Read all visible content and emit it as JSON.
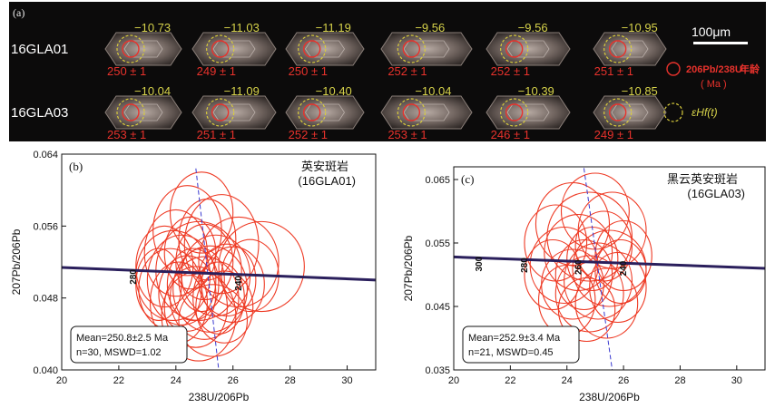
{
  "panel_a": {
    "label": "(a)",
    "scale_bar": "100μm",
    "legend": {
      "age_label_iso": "206Pb/238U",
      "age_label_cn": "年龄",
      "age_unit": "( Ma )",
      "hf_label": "εHf(t)"
    },
    "rows": [
      {
        "sample": "16GLA01",
        "grains": [
          {
            "hf": "−10.73",
            "age": "250 ± 1"
          },
          {
            "hf": "−11.03",
            "age": "249 ± 1"
          },
          {
            "hf": "−11.19",
            "age": "250 ± 1"
          },
          {
            "hf": "−9.56",
            "age": "252 ± 1"
          },
          {
            "hf": "−9.56",
            "age": "252 ± 1"
          },
          {
            "hf": "−10.95",
            "age": "251 ± 1"
          }
        ]
      },
      {
        "sample": "16GLA03",
        "grains": [
          {
            "hf": "−10.04",
            "age": "253 ± 1"
          },
          {
            "hf": "−11.09",
            "age": "251 ± 1"
          },
          {
            "hf": "−10.40",
            "age": "252 ± 1"
          },
          {
            "hf": "−10.04",
            "age": "253 ± 1"
          },
          {
            "hf": "−10.39",
            "age": "246 ± 1"
          },
          {
            "hf": "−10.85",
            "age": "249 ± 1"
          }
        ]
      }
    ],
    "colors": {
      "age_text": "#e8322c",
      "hf_text": "#d6d24a",
      "circle_red": "#e8322c",
      "circle_yellow": "#d8cc3c"
    }
  },
  "chart_data": [
    {
      "type": "scatter",
      "panel": "(b)",
      "rock": "英安斑岩",
      "sample": "(16GLA01)",
      "xlabel": "238U/206Pb",
      "ylabel": "207Pb/206Pb",
      "xlim": [
        20,
        31
      ],
      "ylim": [
        0.04,
        0.064
      ],
      "xticks": [
        20,
        22,
        24,
        26,
        28,
        30
      ],
      "yticks": [
        0.04,
        0.048,
        0.056,
        0.064
      ],
      "ytick_labels": [
        "0.040",
        "0.048",
        "0.056",
        "0.064"
      ],
      "concordia": [
        {
          "x": 20,
          "y": 0.0514
        },
        {
          "x": 31,
          "y": 0.05
        }
      ],
      "concordia_ages": [
        {
          "label": "280",
          "x": 22.6,
          "y": 0.0495
        },
        {
          "label": "240",
          "x": 26.3,
          "y": 0.0488
        }
      ],
      "mean_line": [
        {
          "x": 24.7,
          "y": 0.0624
        },
        {
          "x": 25.5,
          "y": 0.04
        }
      ],
      "annotation": {
        "mean": "Mean=250.8±2.5 Ma",
        "stats": "n=30, MSWD=1.02"
      },
      "ellipses": [
        {
          "x": 24.9,
          "y": 0.0575,
          "rx": 1.1,
          "ry": 0.0045
        },
        {
          "x": 24.4,
          "y": 0.0555,
          "rx": 1.2,
          "ry": 0.005
        },
        {
          "x": 25.6,
          "y": 0.054,
          "rx": 1.3,
          "ry": 0.0055
        },
        {
          "x": 24.0,
          "y": 0.053,
          "rx": 1.1,
          "ry": 0.0048
        },
        {
          "x": 25.0,
          "y": 0.052,
          "rx": 1.0,
          "ry": 0.0042
        },
        {
          "x": 26.2,
          "y": 0.052,
          "rx": 1.4,
          "ry": 0.005
        },
        {
          "x": 23.6,
          "y": 0.0515,
          "rx": 1.0,
          "ry": 0.0045
        },
        {
          "x": 24.8,
          "y": 0.051,
          "rx": 1.5,
          "ry": 0.0055
        },
        {
          "x": 25.4,
          "y": 0.0505,
          "rx": 1.2,
          "ry": 0.0045
        },
        {
          "x": 27.0,
          "y": 0.0515,
          "rx": 1.5,
          "ry": 0.005
        },
        {
          "x": 24.2,
          "y": 0.05,
          "rx": 1.2,
          "ry": 0.005
        },
        {
          "x": 25.8,
          "y": 0.05,
          "rx": 1.0,
          "ry": 0.004
        },
        {
          "x": 24.6,
          "y": 0.0495,
          "rx": 0.9,
          "ry": 0.004
        },
        {
          "x": 23.8,
          "y": 0.049,
          "rx": 1.1,
          "ry": 0.0045
        },
        {
          "x": 25.2,
          "y": 0.049,
          "rx": 1.3,
          "ry": 0.0048
        },
        {
          "x": 26.0,
          "y": 0.0495,
          "rx": 1.1,
          "ry": 0.0042
        },
        {
          "x": 24.4,
          "y": 0.0485,
          "rx": 1.0,
          "ry": 0.0042
        },
        {
          "x": 25.0,
          "y": 0.048,
          "rx": 1.2,
          "ry": 0.0046
        },
        {
          "x": 23.4,
          "y": 0.0495,
          "rx": 0.8,
          "ry": 0.004
        },
        {
          "x": 24.9,
          "y": 0.05,
          "rx": 0.8,
          "ry": 0.0035
        },
        {
          "x": 25.5,
          "y": 0.048,
          "rx": 0.9,
          "ry": 0.004
        },
        {
          "x": 24.1,
          "y": 0.0475,
          "rx": 1.0,
          "ry": 0.0045
        },
        {
          "x": 24.7,
          "y": 0.047,
          "rx": 1.1,
          "ry": 0.0045
        },
        {
          "x": 25.7,
          "y": 0.047,
          "rx": 1.0,
          "ry": 0.004
        },
        {
          "x": 24.8,
          "y": 0.046,
          "rx": 1.3,
          "ry": 0.005
        },
        {
          "x": 25.3,
          "y": 0.0455,
          "rx": 1.2,
          "ry": 0.004
        },
        {
          "x": 23.9,
          "y": 0.0505,
          "rx": 1.3,
          "ry": 0.005
        },
        {
          "x": 26.6,
          "y": 0.0505,
          "rx": 1.0,
          "ry": 0.004
        },
        {
          "x": 24.5,
          "y": 0.053,
          "rx": 0.9,
          "ry": 0.004
        },
        {
          "x": 25.1,
          "y": 0.0545,
          "rx": 1.0,
          "ry": 0.0045
        }
      ]
    },
    {
      "type": "scatter",
      "panel": "(c)",
      "rock": "黑云英安斑岩",
      "sample": "(16GLA03)",
      "xlabel": "238U/206Pb",
      "ylabel": "207Pb/206Pb",
      "xlim": [
        20,
        31
      ],
      "ylim": [
        0.035,
        0.067
      ],
      "xticks": [
        20,
        22,
        24,
        26,
        28,
        30
      ],
      "yticks": [
        0.035,
        0.045,
        0.055,
        0.065
      ],
      "ytick_labels": [
        "0.035",
        "0.045",
        "0.055",
        "0.065"
      ],
      "concordia": [
        {
          "x": 20,
          "y": 0.0528
        },
        {
          "x": 31,
          "y": 0.051
        }
      ],
      "concordia_ages": [
        {
          "label": "300",
          "x": 21.0,
          "y": 0.0505
        },
        {
          "label": "280",
          "x": 22.6,
          "y": 0.0503
        },
        {
          "label": "260",
          "x": 24.5,
          "y": 0.05
        },
        {
          "label": "240",
          "x": 26.1,
          "y": 0.0498
        }
      ],
      "mean_line": [
        {
          "x": 24.6,
          "y": 0.0668
        },
        {
          "x": 25.6,
          "y": 0.035
        }
      ],
      "annotation": {
        "mean": "Mean=252.9±3.4 Ma",
        "stats": "n=21, MSWD=0.45"
      },
      "ellipses": [
        {
          "x": 25.0,
          "y": 0.06,
          "rx": 1.2,
          "ry": 0.006
        },
        {
          "x": 24.2,
          "y": 0.058,
          "rx": 1.3,
          "ry": 0.0065
        },
        {
          "x": 25.6,
          "y": 0.057,
          "rx": 1.2,
          "ry": 0.006
        },
        {
          "x": 24.8,
          "y": 0.056,
          "rx": 1.5,
          "ry": 0.007
        },
        {
          "x": 23.6,
          "y": 0.055,
          "rx": 1.1,
          "ry": 0.006
        },
        {
          "x": 25.3,
          "y": 0.0545,
          "rx": 1.0,
          "ry": 0.0055
        },
        {
          "x": 24.4,
          "y": 0.0535,
          "rx": 1.2,
          "ry": 0.006
        },
        {
          "x": 26.0,
          "y": 0.053,
          "rx": 1.0,
          "ry": 0.0055
        },
        {
          "x": 24.9,
          "y": 0.0525,
          "rx": 0.9,
          "ry": 0.005
        },
        {
          "x": 23.9,
          "y": 0.0515,
          "rx": 1.2,
          "ry": 0.006
        },
        {
          "x": 25.5,
          "y": 0.051,
          "rx": 1.3,
          "ry": 0.006
        },
        {
          "x": 24.6,
          "y": 0.05,
          "rx": 1.0,
          "ry": 0.0055
        },
        {
          "x": 25.1,
          "y": 0.049,
          "rx": 1.2,
          "ry": 0.006
        },
        {
          "x": 24.2,
          "y": 0.0485,
          "rx": 1.1,
          "ry": 0.0055
        },
        {
          "x": 25.8,
          "y": 0.048,
          "rx": 1.0,
          "ry": 0.0055
        },
        {
          "x": 24.8,
          "y": 0.047,
          "rx": 1.2,
          "ry": 0.006
        },
        {
          "x": 24.0,
          "y": 0.046,
          "rx": 1.0,
          "ry": 0.0055
        },
        {
          "x": 25.4,
          "y": 0.0455,
          "rx": 1.1,
          "ry": 0.0055
        },
        {
          "x": 24.7,
          "y": 0.0445,
          "rx": 1.0,
          "ry": 0.005
        },
        {
          "x": 25.9,
          "y": 0.0505,
          "rx": 0.9,
          "ry": 0.005
        },
        {
          "x": 23.5,
          "y": 0.05,
          "rx": 1.0,
          "ry": 0.0055
        }
      ]
    }
  ]
}
